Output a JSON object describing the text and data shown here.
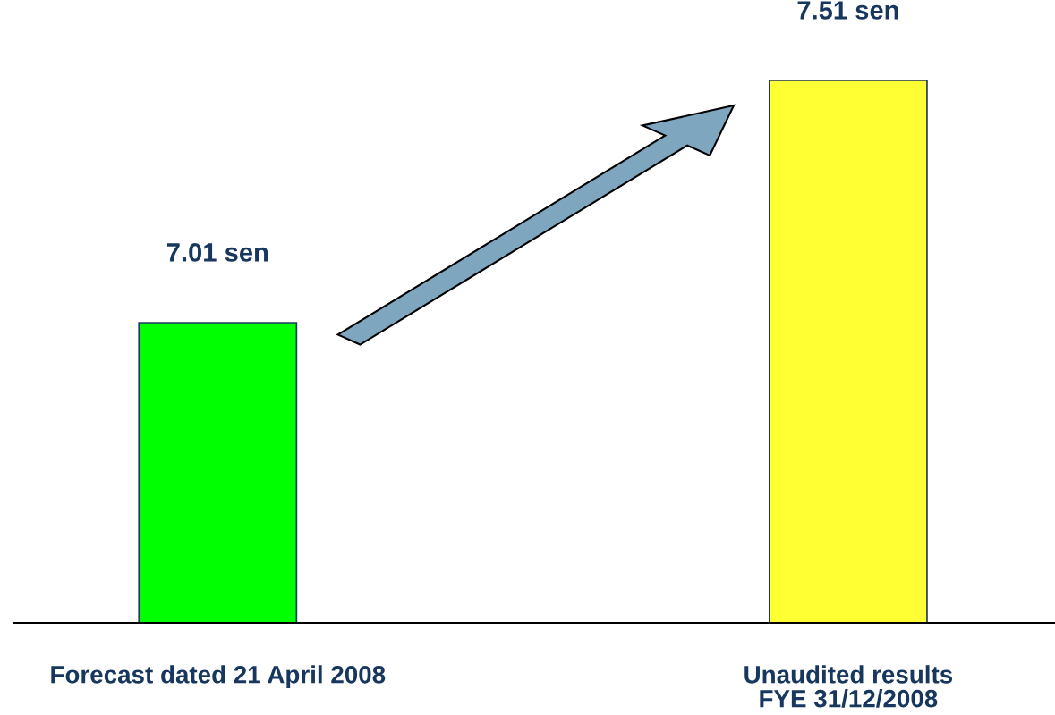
{
  "chart_data": {
    "type": "bar",
    "ylim": [
      6.39,
      7.51
    ],
    "categories": [
      "Forecast dated 21 April 2008",
      "Unaudited results\nFYE 31/12/2008"
    ],
    "values": [
      7.01,
      7.51
    ],
    "colors": [
      "#00ff00",
      "#ffff33"
    ],
    "value_labels": [
      "7.01 sen",
      "7.51 sen"
    ],
    "grid": false,
    "legend": false
  }
}
